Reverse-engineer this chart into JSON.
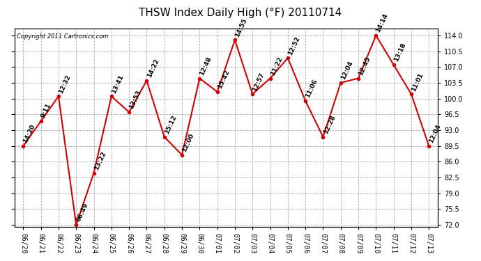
{
  "title": "THSW Index Daily High (°F) 20110714",
  "copyright": "Copyright 2011 Cartronics.com",
  "dates": [
    "06/20",
    "06/21",
    "06/22",
    "06/23",
    "06/24",
    "06/25",
    "06/26",
    "06/27",
    "06/28",
    "06/29",
    "06/30",
    "07/01",
    "07/02",
    "07/03",
    "07/04",
    "07/05",
    "07/06",
    "07/07",
    "07/08",
    "07/09",
    "07/10",
    "07/11",
    "07/12",
    "07/13"
  ],
  "values": [
    89.5,
    95.0,
    100.5,
    72.0,
    83.5,
    100.5,
    97.0,
    104.0,
    91.5,
    87.5,
    104.5,
    101.5,
    113.0,
    101.0,
    104.5,
    109.0,
    99.5,
    91.5,
    103.5,
    104.5,
    114.0,
    107.5,
    101.0,
    89.5
  ],
  "time_labels": [
    "14:20",
    "9:11",
    "12:32",
    "06:49",
    "13:22",
    "13:41",
    "13:53",
    "14:22",
    "15:12",
    "12:00",
    "12:48",
    "15:42",
    "14:55",
    "12:57",
    "11:22",
    "12:52",
    "11:06",
    "12:28",
    "12:04",
    "12:45",
    "14:14",
    "13:18",
    "11:01",
    "12:04"
  ],
  "yticks": [
    72.0,
    75.5,
    79.0,
    82.5,
    86.0,
    89.5,
    93.0,
    96.5,
    100.0,
    103.5,
    107.0,
    110.5,
    114.0
  ],
  "ylim": [
    71.5,
    115.5
  ],
  "line_color": "#cc0000",
  "marker_color": "#cc0000",
  "bg_color": "#ffffff",
  "plot_bg_color": "#ffffff",
  "grid_color": "#aaaaaa",
  "title_fontsize": 11,
  "tick_fontsize": 7,
  "label_fontsize": 6.5
}
